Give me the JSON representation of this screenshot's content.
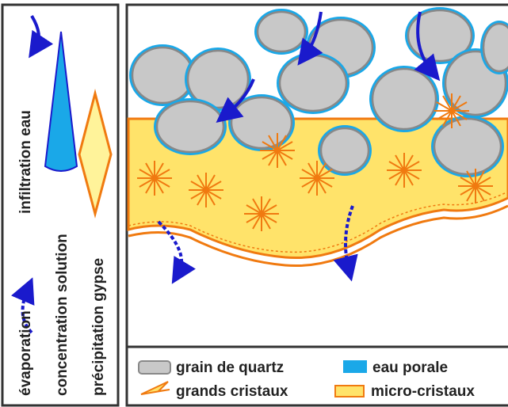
{
  "side_panel": {
    "infiltration": "infiltration eau",
    "evaporation": "évaporation",
    "concentration": "concentration solution",
    "precipitation": "précipitation gypse"
  },
  "legend": {
    "quartz": "grain de quartz",
    "water": "eau porale",
    "large_crystals": "grands cristaux",
    "micro_crystals": "micro-cristaux"
  }
}
